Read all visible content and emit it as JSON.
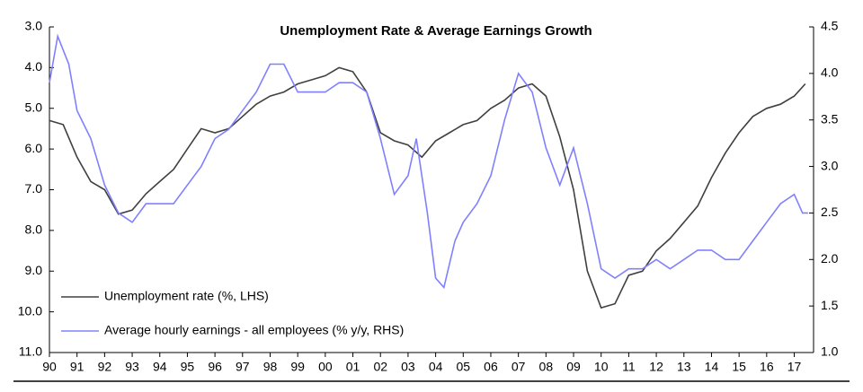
{
  "chart_data": {
    "type": "line",
    "title": "Unemployment Rate & Average Earnings Growth",
    "xlim": [
      1990,
      2017.7
    ],
    "xticks": [
      {
        "value": 1990,
        "label": "90"
      },
      {
        "value": 1991,
        "label": "91"
      },
      {
        "value": 1992,
        "label": "92"
      },
      {
        "value": 1993,
        "label": "93"
      },
      {
        "value": 1994,
        "label": "94"
      },
      {
        "value": 1995,
        "label": "95"
      },
      {
        "value": 1996,
        "label": "96"
      },
      {
        "value": 1997,
        "label": "97"
      },
      {
        "value": 1998,
        "label": "98"
      },
      {
        "value": 1999,
        "label": "99"
      },
      {
        "value": 2000,
        "label": "00"
      },
      {
        "value": 2001,
        "label": "01"
      },
      {
        "value": 2002,
        "label": "02"
      },
      {
        "value": 2003,
        "label": "03"
      },
      {
        "value": 2004,
        "label": "04"
      },
      {
        "value": 2005,
        "label": "05"
      },
      {
        "value": 2006,
        "label": "06"
      },
      {
        "value": 2007,
        "label": "07"
      },
      {
        "value": 2008,
        "label": "08"
      },
      {
        "value": 2009,
        "label": "09"
      },
      {
        "value": 2010,
        "label": "10"
      },
      {
        "value": 2011,
        "label": "11"
      },
      {
        "value": 2012,
        "label": "12"
      },
      {
        "value": 2013,
        "label": "13"
      },
      {
        "value": 2014,
        "label": "14"
      },
      {
        "value": 2015,
        "label": "15"
      },
      {
        "value": 2016,
        "label": "16"
      },
      {
        "value": 2017,
        "label": "17"
      }
    ],
    "ylim": [
      11,
      3
    ],
    "yticks": [
      {
        "value": 3,
        "label": "3.0"
      },
      {
        "value": 4,
        "label": "4.0"
      },
      {
        "value": 5,
        "label": "5.0"
      },
      {
        "value": 6,
        "label": "6.0"
      },
      {
        "value": 7,
        "label": "7.0"
      },
      {
        "value": 8,
        "label": "8.0"
      },
      {
        "value": 9,
        "label": "9.0"
      },
      {
        "value": 10,
        "label": "10.0"
      },
      {
        "value": 11,
        "label": "11.0"
      }
    ],
    "y2lim": [
      1,
      4.5
    ],
    "y2ticks": [
      {
        "value": 1,
        "label": "1.0"
      },
      1.5,
      {
        "value": 2,
        "label": "2.0"
      },
      2.5,
      {
        "value": 3,
        "label": "3.0"
      },
      3.5,
      {
        "value": 4,
        "label": "4.0"
      },
      4.5
    ],
    "legend": "lower left",
    "series": [
      {
        "name": "Unemployment rate (%, LHS)",
        "color": "#404040",
        "axis": "y",
        "x": [
          1990,
          1990.5,
          1991,
          1991.5,
          1992,
          1992.5,
          1993,
          1993.5,
          1994,
          1994.5,
          1995,
          1995.5,
          1996,
          1996.5,
          1997,
          1997.5,
          1998,
          1998.5,
          1999,
          1999.5,
          2000,
          2000.5,
          2001,
          2001.5,
          2002,
          2002.5,
          2003,
          2003.5,
          2004,
          2004.5,
          2005,
          2005.5,
          2006,
          2006.5,
          2007,
          2007.5,
          2008,
          2008.5,
          2009,
          2009.5,
          2010,
          2010.5,
          2011,
          2011.5,
          2012,
          2012.5,
          2013,
          2013.5,
          2014,
          2014.5,
          2015,
          2015.5,
          2016,
          2016.5,
          2017,
          2017.4
        ],
        "values": [
          5.3,
          5.4,
          6.2,
          6.8,
          7.0,
          7.6,
          7.5,
          7.1,
          6.8,
          6.5,
          6.0,
          5.5,
          5.6,
          5.5,
          5.2,
          4.9,
          4.7,
          4.6,
          4.4,
          4.3,
          4.2,
          4.0,
          4.1,
          4.6,
          5.6,
          5.8,
          5.9,
          6.2,
          5.8,
          5.6,
          5.4,
          5.3,
          5.0,
          4.8,
          4.5,
          4.4,
          4.7,
          5.7,
          7.0,
          9.0,
          9.9,
          9.8,
          9.1,
          9.0,
          8.5,
          8.2,
          7.8,
          7.4,
          6.7,
          6.1,
          5.6,
          5.2,
          5.0,
          4.9,
          4.7,
          4.4
        ]
      },
      {
        "name": "Average hourly earnings - all employees (% y/y, RHS)",
        "color": "#8080ff",
        "axis": "y2",
        "x": [
          1990,
          1990.3,
          1990.7,
          1991,
          1991.5,
          1992,
          1992.5,
          1993,
          1993.5,
          1994,
          1994.5,
          1995,
          1995.5,
          1996,
          1996.5,
          1997,
          1997.5,
          1998,
          1998.5,
          1999,
          1999.5,
          2000,
          2000.5,
          2001,
          2001.5,
          2002,
          2002.5,
          2003,
          2003.3,
          2003.7,
          2004,
          2004.3,
          2004.7,
          2005,
          2005.5,
          2006,
          2006.5,
          2007,
          2007.5,
          2008,
          2008.5,
          2009,
          2009.5,
          2010,
          2010.5,
          2011,
          2011.5,
          2012,
          2012.5,
          2013,
          2013.5,
          2014,
          2014.5,
          2015,
          2015.5,
          2016,
          2016.5,
          2017,
          2017.3,
          2017.5
        ],
        "values": [
          3.9,
          4.4,
          4.1,
          3.6,
          3.3,
          2.8,
          2.5,
          2.4,
          2.6,
          2.6,
          2.6,
          2.8,
          3.0,
          3.3,
          3.4,
          3.6,
          3.8,
          4.1,
          4.1,
          3.8,
          3.8,
          3.8,
          3.9,
          3.9,
          3.8,
          3.3,
          2.7,
          2.9,
          3.3,
          2.5,
          1.8,
          1.7,
          2.2,
          2.4,
          2.6,
          2.9,
          3.5,
          4.0,
          3.8,
          3.2,
          2.8,
          3.2,
          2.6,
          1.9,
          1.8,
          1.9,
          1.9,
          2.0,
          1.9,
          2.0,
          2.1,
          2.1,
          2.0,
          2.0,
          2.2,
          2.4,
          2.6,
          2.7,
          2.5,
          2.5
        ]
      }
    ]
  }
}
